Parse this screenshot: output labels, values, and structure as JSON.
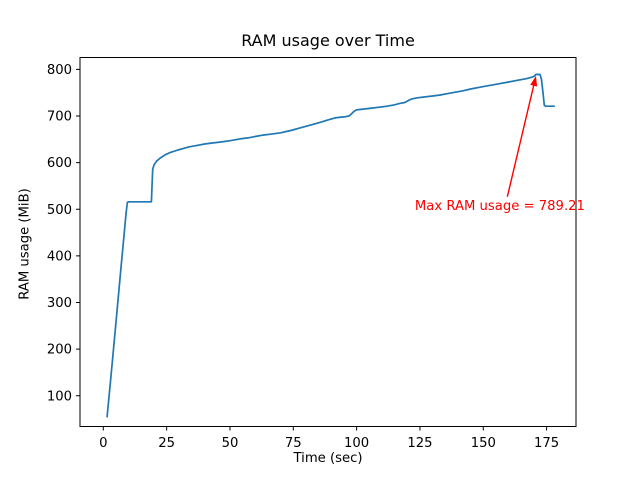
{
  "figure": {
    "background": "#ffffff",
    "frame_color": "#000000",
    "tick_label_color": "#000000"
  },
  "chart_data": {
    "type": "line",
    "title": "RAM usage over Time",
    "xlabel": "Time (sec)",
    "ylabel": "RAM usage (MiB)",
    "xlim": [
      -9.2,
      186.6
    ],
    "ylim": [
      34,
      825.5
    ],
    "xticks": [
      0,
      25,
      50,
      75,
      100,
      125,
      150,
      175
    ],
    "yticks": [
      100,
      200,
      300,
      400,
      500,
      600,
      700,
      800
    ],
    "grid": false,
    "legend": "none",
    "series": [
      {
        "color": "#1f77b4",
        "linewidth": 1.7,
        "points": [
          [
            1.5,
            55
          ],
          [
            3,
            140
          ],
          [
            5,
            258
          ],
          [
            7,
            375
          ],
          [
            9,
            492
          ],
          [
            9.5,
            515
          ],
          [
            10,
            516
          ],
          [
            14,
            516
          ],
          [
            19.0,
            516
          ],
          [
            19.5,
            586
          ],
          [
            20,
            595
          ],
          [
            21,
            603
          ],
          [
            22.5,
            610
          ],
          [
            24.5,
            617
          ],
          [
            26.5,
            622
          ],
          [
            29.5,
            627
          ],
          [
            32,
            631
          ],
          [
            34,
            634
          ],
          [
            37,
            637
          ],
          [
            40,
            640
          ],
          [
            43,
            642
          ],
          [
            46,
            644
          ],
          [
            50,
            647
          ],
          [
            54,
            651
          ],
          [
            57,
            653
          ],
          [
            60,
            656
          ],
          [
            63,
            659
          ],
          [
            66,
            661
          ],
          [
            70,
            664
          ],
          [
            74,
            669
          ],
          [
            78,
            675
          ],
          [
            82,
            681
          ],
          [
            86,
            687
          ],
          [
            89,
            692
          ],
          [
            91.5,
            696
          ],
          [
            93,
            697
          ],
          [
            95,
            698
          ],
          [
            97,
            700
          ],
          [
            98,
            705
          ],
          [
            99,
            710
          ],
          [
            100,
            713
          ],
          [
            103,
            715
          ],
          [
            106,
            717
          ],
          [
            109,
            719
          ],
          [
            112,
            721
          ],
          [
            115,
            724
          ],
          [
            117,
            727
          ],
          [
            119,
            729
          ],
          [
            120,
            732
          ],
          [
            121,
            735
          ],
          [
            122,
            737
          ],
          [
            124,
            739
          ],
          [
            127,
            741
          ],
          [
            130,
            743
          ],
          [
            133,
            745
          ],
          [
            136,
            748
          ],
          [
            139,
            751
          ],
          [
            142,
            754
          ],
          [
            145,
            758
          ],
          [
            150,
            763
          ],
          [
            155,
            768
          ],
          [
            160,
            773
          ],
          [
            164,
            777
          ],
          [
            167,
            780
          ],
          [
            169,
            783
          ],
          [
            170,
            785
          ],
          [
            170.8,
            789.21
          ],
          [
            172.4,
            789
          ],
          [
            173,
            778
          ],
          [
            173.6,
            748
          ],
          [
            174.1,
            723
          ],
          [
            174.6,
            721
          ],
          [
            176,
            721
          ],
          [
            178,
            721
          ]
        ]
      }
    ],
    "annotation": {
      "text": "Max RAM usage = 789.21",
      "color": "#ff0000",
      "text_xy": [
        123,
        497
      ],
      "arrow_tail_xy": [
        159.5,
        527
      ],
      "arrow_tip_xy": [
        170.8,
        786
      ]
    }
  }
}
